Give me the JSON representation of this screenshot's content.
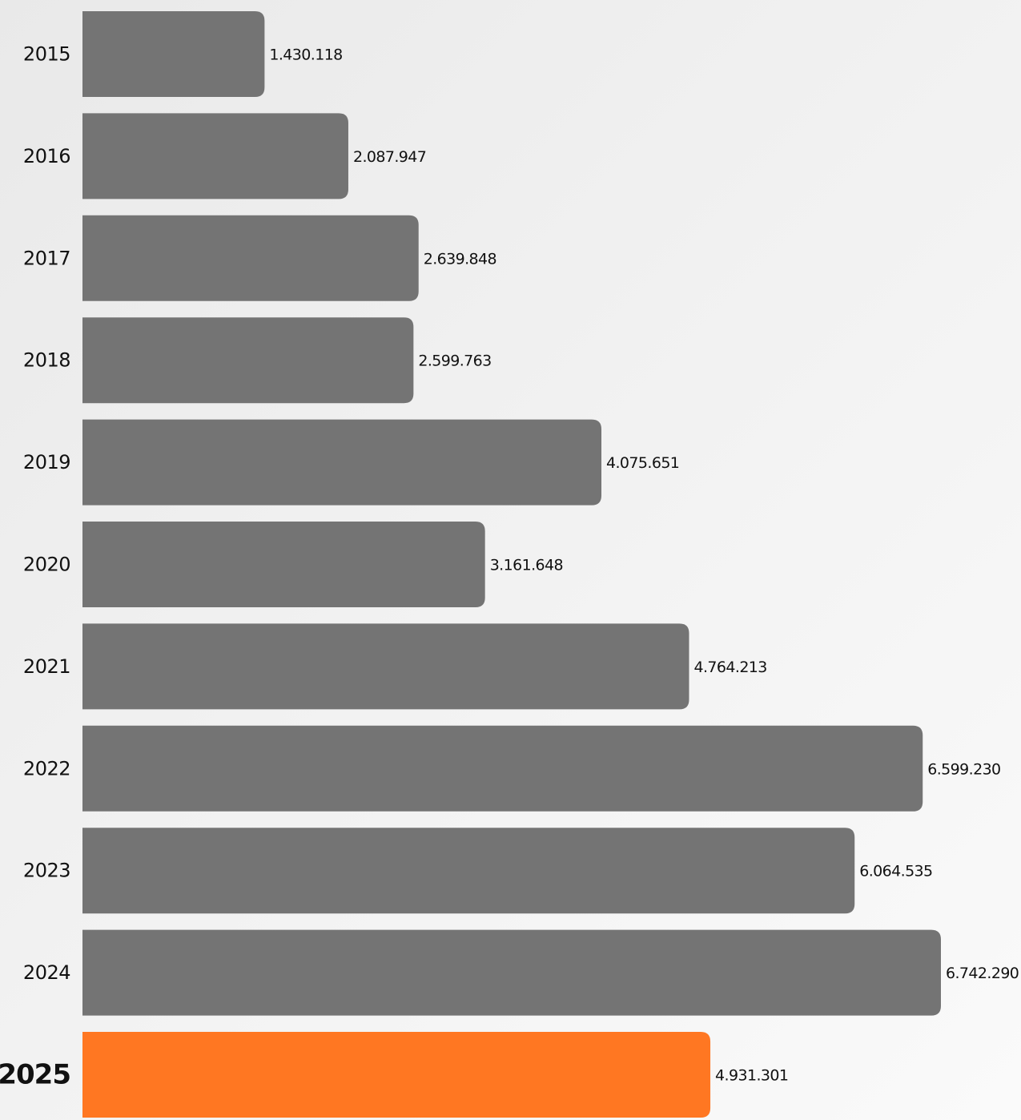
{
  "chart_data": {
    "type": "bar",
    "orientation": "horizontal",
    "categories": [
      "2015",
      "2016",
      "2017",
      "2018",
      "2019",
      "2020",
      "2021",
      "2022",
      "2023",
      "2024",
      "2025"
    ],
    "values": [
      1430118,
      2087947,
      2639848,
      2599763,
      4075651,
      3161648,
      4764213,
      6599230,
      6064535,
      6742290,
      4931301
    ],
    "value_labels": [
      "1.430.118",
      "2.087.947",
      "2.639.848",
      "2.599.763",
      "4.075.651",
      "3.161.648",
      "4.764.213",
      "6.599.230",
      "6.064.535",
      "6.742.290",
      "4.931.301"
    ],
    "highlight_category": "2025",
    "colors": {
      "bar": "#747474",
      "highlight": "#ff7722"
    },
    "xlim": [
      0,
      6742290
    ],
    "grid": false,
    "legend": false,
    "title": "",
    "xlabel": "",
    "ylabel": ""
  }
}
